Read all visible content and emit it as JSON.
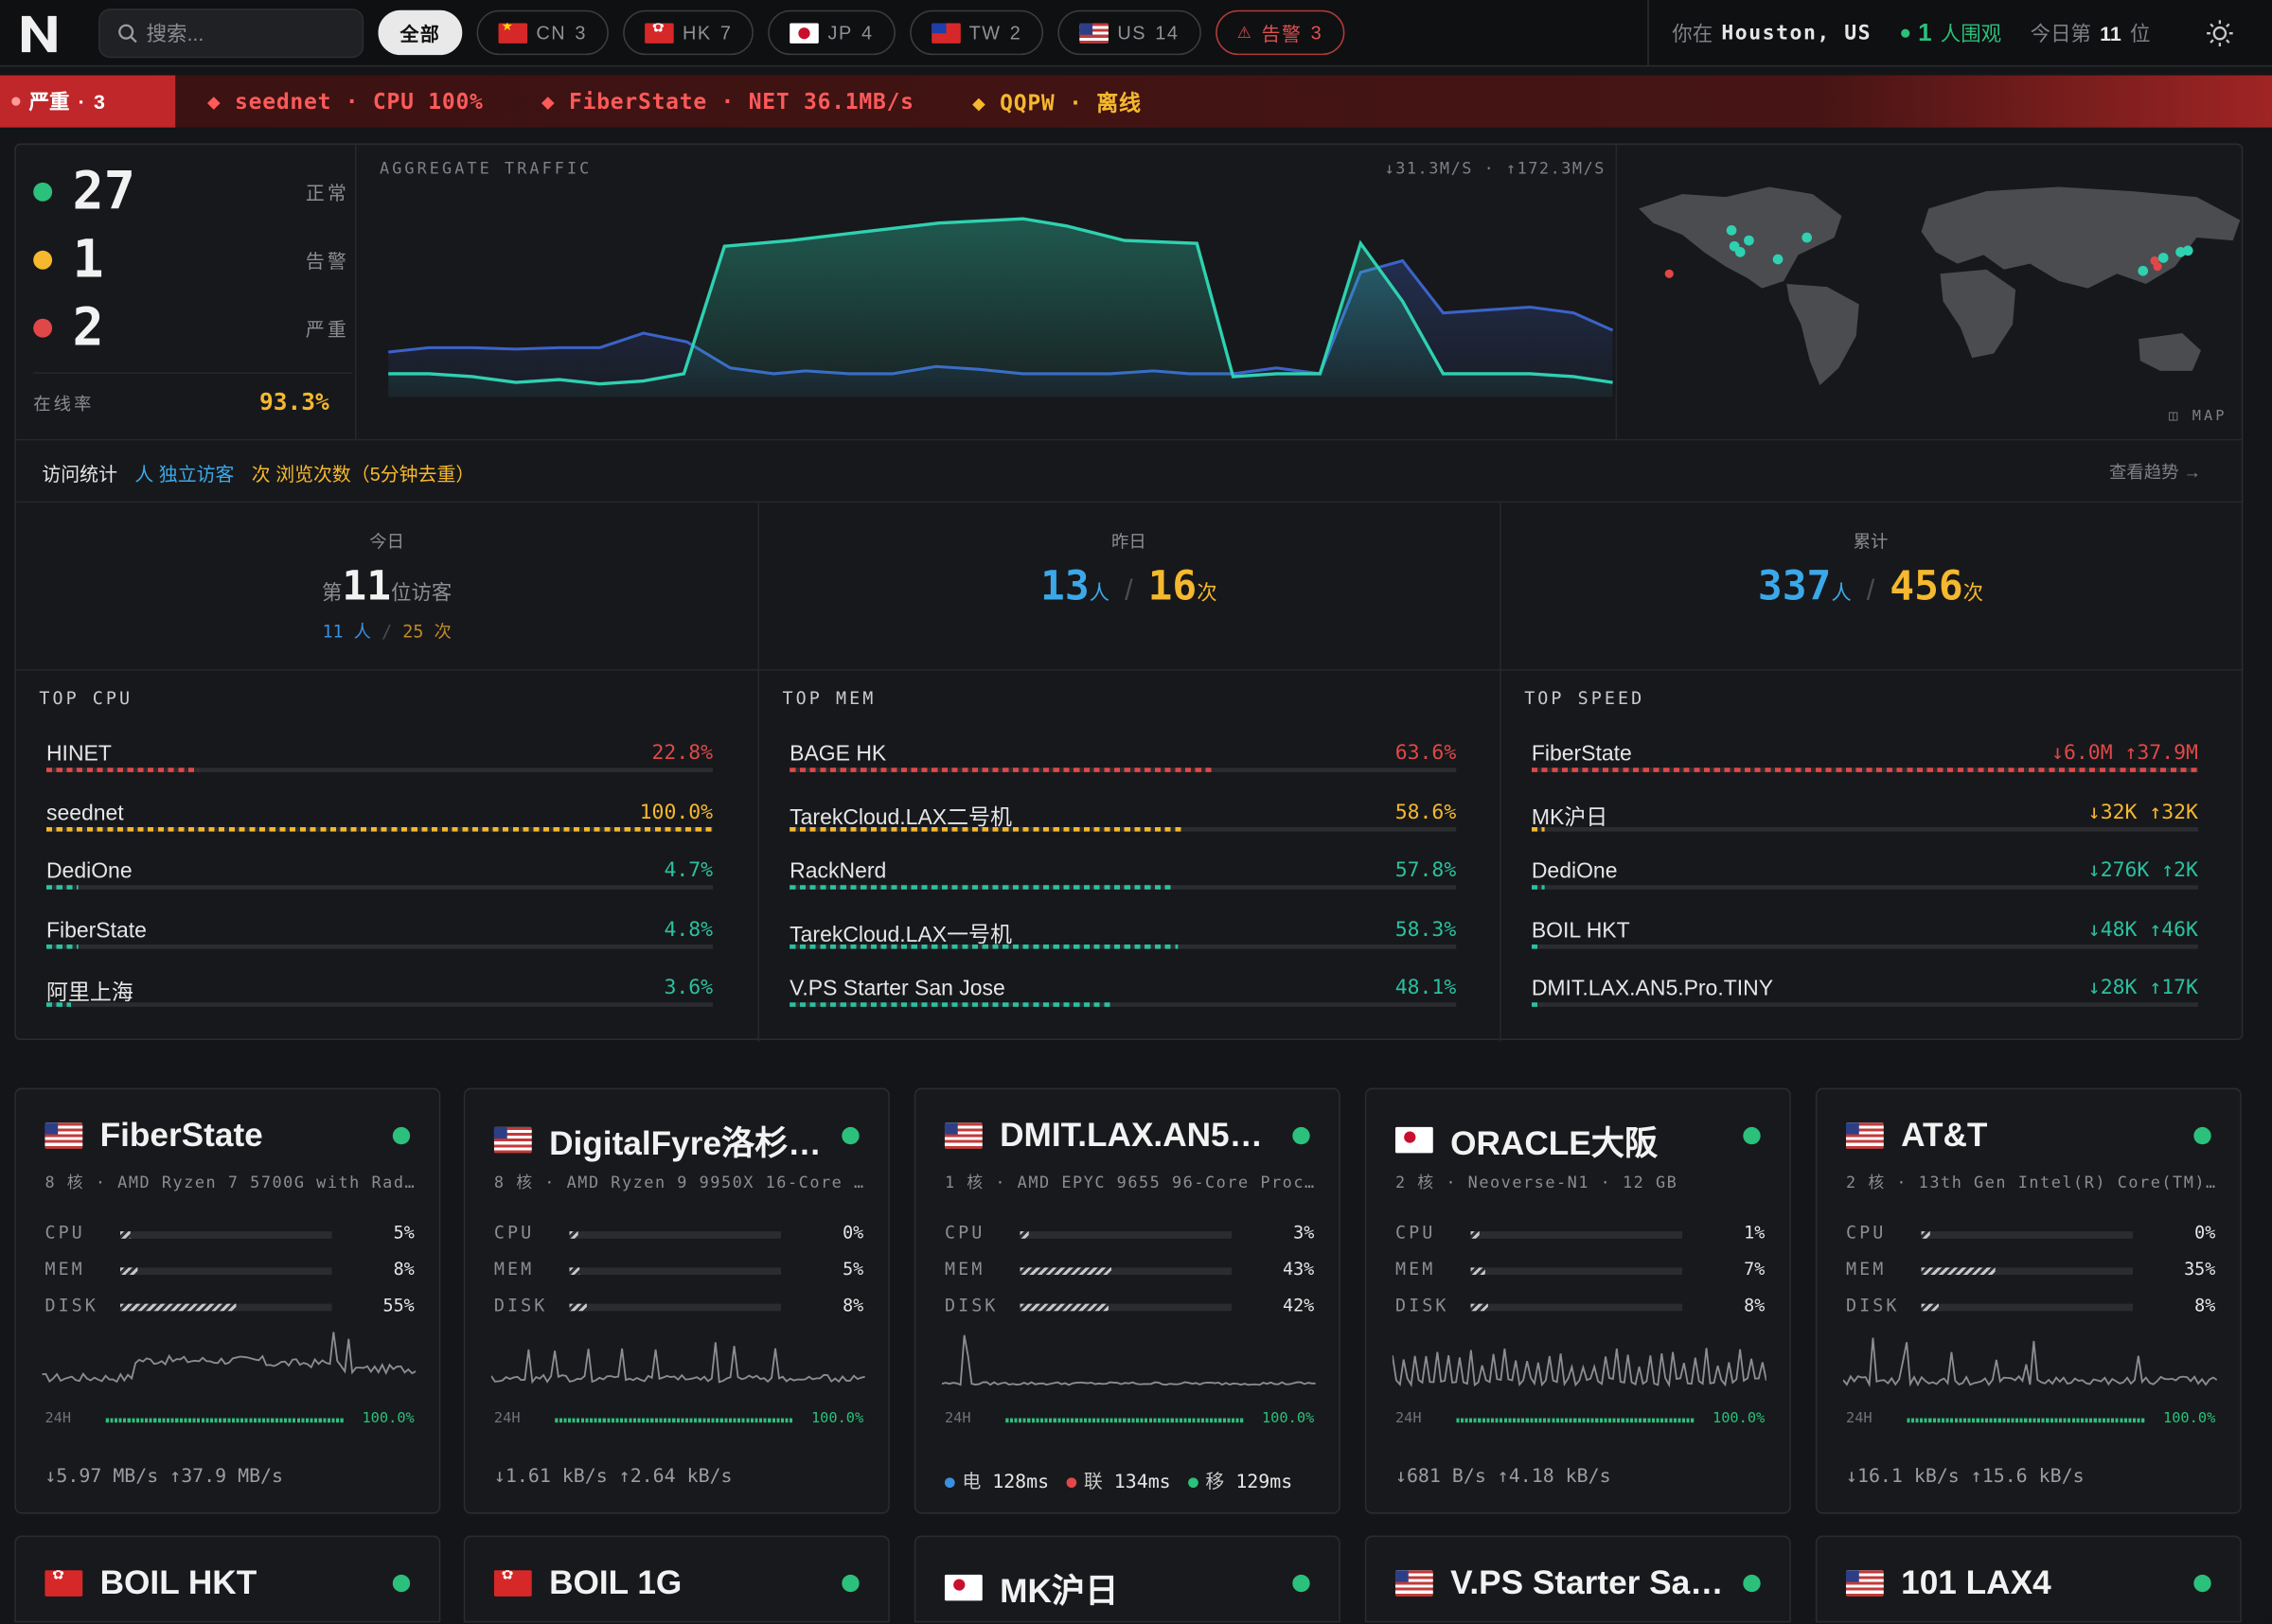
{
  "topbar": {
    "search_placeholder": "搜索...",
    "chips": [
      {
        "label": "全部",
        "count": ""
      },
      {
        "label": "CN",
        "count": "3"
      },
      {
        "label": "HK",
        "count": "7"
      },
      {
        "label": "JP",
        "count": "4"
      },
      {
        "label": "TW",
        "count": "2"
      },
      {
        "label": "US",
        "count": "14"
      },
      {
        "label": "告警",
        "count": "3"
      }
    ],
    "you_at": "你在",
    "location": "Houston, US",
    "watching_count": "1",
    "watching_label": "人围观",
    "rank_prefix": "今日第",
    "rank_value": "11",
    "rank_suffix": "位"
  },
  "ticker": {
    "severity_label": "严重",
    "severity_count": "3",
    "items": [
      {
        "text": "seednet · CPU 100%",
        "color": "#ff5a5a"
      },
      {
        "text": "FiberState · NET 36.1MB/s",
        "color": "#ff5a5a"
      },
      {
        "text": "QQPW · 离线",
        "color": "#f5b82e"
      }
    ]
  },
  "status": {
    "normal": {
      "count": "27",
      "label": "正常",
      "color": "#2bc07b"
    },
    "warning": {
      "count": "1",
      "label": "告警",
      "color": "#f5b82e"
    },
    "critical": {
      "count": "2",
      "label": "严重",
      "color": "#e04848"
    },
    "online_label": "在线率",
    "online_value": "93.3%"
  },
  "traffic": {
    "caption": "AGGREGATE TRAFFIC",
    "rates": "↓31.3M/S · ↑172.3M/S",
    "map_label": "MAP"
  },
  "visits": {
    "title": "访问统计",
    "legend_unique": "人 独立访客",
    "legend_views": "次 浏览次数（5分钟去重）",
    "trend_link": "查看趋势 →",
    "today": {
      "label": "今日",
      "prefix": "第",
      "rank": "11",
      "suffix": "位访客",
      "people": "11",
      "people_unit": "人",
      "views": "25",
      "views_unit": "次"
    },
    "yesterday": {
      "label": "昨日",
      "people": "13",
      "people_unit": "人",
      "views": "16",
      "views_unit": "次"
    },
    "total": {
      "label": "累计",
      "people": "337",
      "people_unit": "人",
      "views": "456",
      "views_unit": "次"
    }
  },
  "top_cpu": {
    "title": "TOP CPU",
    "rows": [
      {
        "name": "HINET",
        "value": "22.8%",
        "pct": 22.8,
        "color": "#e04848"
      },
      {
        "name": "seednet",
        "value": "100.0%",
        "pct": 100,
        "color": "#f5b82e"
      },
      {
        "name": "DediOne",
        "value": "4.7%",
        "pct": 4.7,
        "color": "#2bc0a0"
      },
      {
        "name": "FiberState",
        "value": "4.8%",
        "pct": 4.8,
        "color": "#2bc0a0"
      },
      {
        "name": "阿里上海",
        "value": "3.6%",
        "pct": 3.6,
        "color": "#2bc0a0"
      }
    ]
  },
  "top_mem": {
    "title": "TOP MEM",
    "rows": [
      {
        "name": "BAGE HK",
        "value": "63.6%",
        "pct": 63.6,
        "color": "#e04848"
      },
      {
        "name": "TarekCloud.LAX二号机",
        "value": "58.6%",
        "pct": 58.6,
        "color": "#f5b82e"
      },
      {
        "name": "RackNerd",
        "value": "57.8%",
        "pct": 57.8,
        "color": "#2bc0a0"
      },
      {
        "name": "TarekCloud.LAX一号机",
        "value": "58.3%",
        "pct": 58.3,
        "color": "#2bc0a0"
      },
      {
        "name": "V.PS Starter San Jose",
        "value": "48.1%",
        "pct": 48.1,
        "color": "#2bc0a0"
      }
    ]
  },
  "top_speed": {
    "title": "TOP SPEED",
    "rows": [
      {
        "name": "FiberState",
        "value": "↓6.0M ↑37.9M",
        "pct": 100,
        "color": "#e04848"
      },
      {
        "name": "MK沪日",
        "value": "↓32K ↑32K",
        "pct": 2,
        "color": "#f5b82e"
      },
      {
        "name": "DediOne",
        "value": "↓276K ↑2K",
        "pct": 2,
        "color": "#2bc0a0"
      },
      {
        "name": "BOIL HKT",
        "value": "↓48K ↑46K",
        "pct": 1,
        "color": "#2bc0a0"
      },
      {
        "name": "DMIT.LAX.AN5.Pro.TINY",
        "value": "↓28K ↑17K",
        "pct": 1,
        "color": "#2bc0a0"
      }
    ]
  },
  "cards": [
    {
      "name": "FiberState",
      "flag": "us",
      "spec": "8 核 · AMD Ryzen 7 5700G with Rad…",
      "cpu": "5%",
      "cpu_pct": 5,
      "mem": "8%",
      "mem_pct": 8,
      "disk": "55%",
      "disk_pct": 55,
      "uptime_label": "24H",
      "uptime": "100.0%",
      "net": "↓5.97 MB/s ↑37.9 MB/s"
    },
    {
      "name": "DigitalFyre洛杉…",
      "flag": "us",
      "spec": "8 核 · AMD Ryzen 9 9950X 16-Core …",
      "cpu": "0%",
      "cpu_pct": 0,
      "mem": "5%",
      "mem_pct": 5,
      "disk": "8%",
      "disk_pct": 8,
      "uptime_label": "24H",
      "uptime": "100.0%",
      "net": "↓1.61 kB/s ↑2.64 kB/s"
    },
    {
      "name": "DMIT.LAX.AN5…",
      "flag": "us",
      "spec": "1 核 · AMD EPYC 9655 96-Core Proc…",
      "cpu": "3%",
      "cpu_pct": 3,
      "mem": "43%",
      "mem_pct": 43,
      "disk": "42%",
      "disk_pct": 42,
      "uptime_label": "24H",
      "uptime": "100.0%",
      "net": "",
      "latency": [
        {
          "label": "电",
          "value": "128ms",
          "color": "#3b8fe0"
        },
        {
          "label": "联",
          "value": "134ms",
          "color": "#e04848"
        },
        {
          "label": "移",
          "value": "129ms",
          "color": "#2bc07b"
        }
      ]
    },
    {
      "name": "ORACLE大阪",
      "flag": "jp",
      "spec": "2 核 · Neoverse-N1 · 12 GB",
      "cpu": "1%",
      "cpu_pct": 1,
      "mem": "7%",
      "mem_pct": 7,
      "disk": "8%",
      "disk_pct": 8,
      "uptime_label": "24H",
      "uptime": "100.0%",
      "net": "↓681 B/s ↑4.18 kB/s"
    },
    {
      "name": "AT&T",
      "flag": "us",
      "spec": "2 核 · 13th Gen Intel(R) Core(TM)…",
      "cpu": "0%",
      "cpu_pct": 0,
      "mem": "35%",
      "mem_pct": 35,
      "disk": "8%",
      "disk_pct": 8,
      "uptime_label": "24H",
      "uptime": "100.0%",
      "net": "↓16.1 kB/s ↑15.6 kB/s"
    }
  ],
  "cards_row2": [
    {
      "name": "BOIL HKT",
      "flag": "hk"
    },
    {
      "name": "BOIL 1G",
      "flag": "hk"
    },
    {
      "name": "MK沪日",
      "flag": "jp"
    },
    {
      "name": "V.PS Starter Sa…",
      "flag": "us"
    },
    {
      "name": "101 LAX4",
      "flag": "us"
    }
  ],
  "metric_labels": {
    "cpu": "CPU",
    "mem": "MEM",
    "disk": "DISK"
  }
}
